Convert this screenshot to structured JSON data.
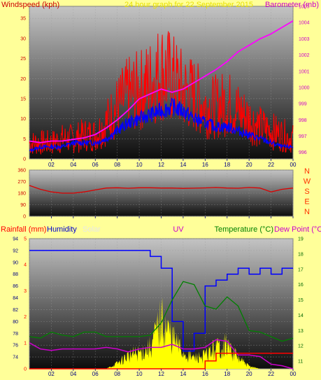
{
  "colors": {
    "background": "#ffff99",
    "wind_gust": "#ff0000",
    "wind_avg": "#0000ff",
    "barometer": "#ff00ff",
    "direction": "#dd0000",
    "compass": "#ff3300",
    "rain": "#ff0000",
    "humidity": "#0000ff",
    "solar": "#ffff00",
    "temperature": "#008000",
    "dewpoint": "#cc00cc",
    "axis_label_top": "#cc0000"
  },
  "header": {
    "left_label": "Windspeed (kph)",
    "title": "24 hour graph for 22 September 2015",
    "right_label": "Barometer (mb)"
  },
  "x_ticks": [
    "02",
    "04",
    "06",
    "08",
    "10",
    "12",
    "14",
    "16",
    "18",
    "20",
    "22",
    "00"
  ],
  "compass": [
    "N",
    "W",
    "S",
    "E",
    "N"
  ],
  "bottom_labels": {
    "rain": "Rainfall (mm)",
    "humidity": "Humidity",
    "solar": "Solar",
    "uv": "UV",
    "temperature": "Temperature (°C)",
    "dewpoint": "Dew Point (°C)"
  },
  "chart_data": [
    {
      "type": "line",
      "title": "24 hour graph for 22 September 2015",
      "ylabel": "Windspeed (kph)",
      "y2label": "Barometer (mb)",
      "x": [
        0,
        1,
        2,
        3,
        4,
        5,
        6,
        7,
        8,
        9,
        10,
        11,
        12,
        13,
        14,
        15,
        16,
        17,
        18,
        19,
        20,
        21,
        22,
        23,
        24
      ],
      "ylim": [
        0,
        38
      ],
      "y_ticks": [
        0,
        5,
        10,
        15,
        20,
        25,
        30,
        35
      ],
      "y2lim": [
        995.6,
        1005.0
      ],
      "y2_ticks": [
        996,
        997,
        998,
        999,
        1000,
        1001,
        1002,
        1003,
        1004,
        1005
      ],
      "series": [
        {
          "name": "Windspeed (kph)",
          "axis": "left",
          "values": [
            4,
            4,
            4,
            5,
            5,
            6,
            6,
            9,
            13,
            16,
            17,
            19,
            22,
            20,
            17,
            16,
            13,
            13,
            14,
            12,
            10,
            8,
            7,
            6,
            5
          ]
        },
        {
          "name": "Windspeed (kph)",
          "axis": "left",
          "values": [
            2,
            3,
            3,
            3,
            4,
            4,
            4,
            5,
            7,
            9,
            10,
            11,
            12,
            13,
            12,
            10,
            9,
            8,
            8,
            7,
            6,
            5,
            4,
            3,
            3
          ]
        },
        {
          "name": "Barometer (mb)",
          "axis": "right",
          "values": [
            996.7,
            996.6,
            996.7,
            996.7,
            996.8,
            996.9,
            997.1,
            997.5,
            998.0,
            998.6,
            999.3,
            999.6,
            999.9,
            999.7,
            999.9,
            1000.3,
            1000.7,
            1001.1,
            1001.6,
            1002.2,
            1002.6,
            1003.0,
            1003.3,
            1003.7,
            1004.1
          ]
        }
      ]
    },
    {
      "type": "line",
      "title": "",
      "ylabel": "",
      "x": [
        0,
        1,
        2,
        3,
        4,
        5,
        6,
        7,
        8,
        9,
        10,
        11,
        12,
        13,
        14,
        15,
        16,
        17,
        18,
        19,
        20,
        21,
        22,
        23,
        24
      ],
      "ylim": [
        0,
        360
      ],
      "y_ticks": [
        0,
        90,
        180,
        270,
        360
      ],
      "series": [
        {
          "name": "N W S E N",
          "values": [
            240,
            210,
            190,
            180,
            180,
            190,
            205,
            220,
            222,
            218,
            222,
            222,
            220,
            220,
            217,
            219,
            221,
            224,
            220,
            218,
            224,
            220,
            190,
            210,
            220
          ]
        }
      ]
    },
    {
      "type": "line",
      "title": "",
      "ylabel": "Humidity",
      "y2label": "Temperature (°C)",
      "x": [
        0,
        1,
        2,
        3,
        4,
        5,
        6,
        7,
        8,
        9,
        10,
        11,
        12,
        13,
        14,
        15,
        16,
        17,
        18,
        19,
        20,
        21,
        22,
        23,
        24
      ],
      "ylim": [
        72,
        94
      ],
      "y_ticks": [
        74,
        76,
        78,
        80,
        82,
        84,
        86,
        88,
        90,
        92,
        94
      ],
      "y2lim": [
        10.5,
        19
      ],
      "y2_ticks": [
        11,
        12,
        13,
        14,
        15,
        16,
        17,
        18,
        19
      ],
      "rain_ylim": [
        0,
        5
      ],
      "rain_ticks": [
        0,
        1,
        2,
        3,
        4,
        5
      ],
      "series": [
        {
          "name": "Humidity",
          "axis": "left",
          "values": [
            92,
            92,
            92,
            92,
            92,
            92,
            92,
            92,
            92,
            92,
            92,
            91,
            89,
            80,
            75,
            78,
            86,
            87,
            88,
            89,
            88,
            89,
            88,
            89,
            89
          ]
        },
        {
          "name": "Temperature (°C)",
          "axis": "right",
          "values": [
            12.6,
            12.5,
            12.9,
            12.7,
            12.6,
            12.9,
            12.9,
            12.6,
            12.6,
            12.6,
            12.6,
            12.7,
            13.5,
            15.0,
            16.2,
            16.0,
            14.6,
            14.4,
            15.2,
            14.6,
            13.0,
            12.9,
            12.6,
            12.3,
            12.5
          ]
        },
        {
          "name": "Dew Point (°C)",
          "axis": "right",
          "values": [
            12.2,
            11.8,
            11.7,
            11.8,
            11.8,
            11.8,
            11.8,
            11.9,
            11.8,
            11.6,
            11.8,
            11.9,
            11.9,
            12.1,
            11.8,
            11.8,
            11.9,
            12.4,
            12.3,
            11.4,
            11.4,
            11.3,
            10.8,
            10.7,
            10.5
          ]
        },
        {
          "name": "Rainfall (mm)",
          "axis": "rain",
          "values": [
            0,
            0,
            0,
            0,
            0,
            0,
            0,
            0,
            0,
            0,
            0,
            0,
            0,
            0,
            0,
            0,
            0.3,
            0.6,
            0.6,
            0.6,
            0.6,
            0.6,
            0.6,
            0.6,
            0.6
          ]
        },
        {
          "name": "Solar",
          "axis": "rain",
          "values": [
            0,
            0,
            0,
            0,
            0,
            0,
            0,
            0,
            0.2,
            0.5,
            0.6,
            0.8,
            1.8,
            1.2,
            0.6,
            0.4,
            0.5,
            0.8,
            0.9,
            0.4,
            0.1,
            0,
            0,
            0,
            0
          ]
        }
      ]
    }
  ]
}
